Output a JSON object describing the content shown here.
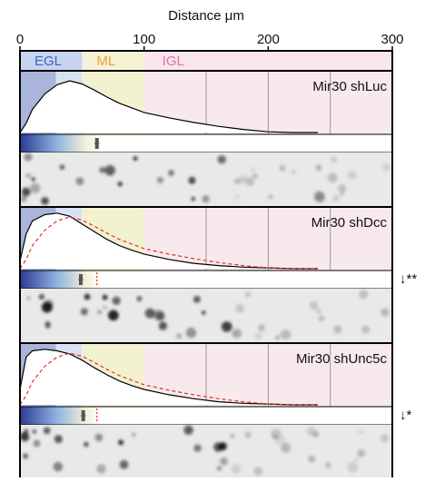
{
  "chart_data": {
    "type": "density",
    "xlabel": "Distance μm",
    "xlim": [
      0,
      300
    ],
    "xticks": [
      0,
      100,
      200,
      300
    ],
    "layers": [
      {
        "name": "EGL",
        "start": 0,
        "end": 50,
        "color": "#3a67c0",
        "bg": "#c8d4ee"
      },
      {
        "name": "ML",
        "start": 50,
        "end": 100,
        "color": "#f0a030",
        "bg": "#f6f2d6"
      },
      {
        "name": "IGL",
        "start": 100,
        "end": 300,
        "color": "#e070a8",
        "bg": "#f9e6ee"
      }
    ],
    "zones": [
      {
        "start": 0,
        "end": 29,
        "color": "#a9b5da"
      },
      {
        "start": 29,
        "end": 50,
        "color": "#d7e3f2"
      },
      {
        "start": 50,
        "end": 100,
        "color": "#f2f1d0"
      },
      {
        "start": 100,
        "end": 300,
        "color": "#f8e9ed"
      }
    ],
    "dividers": [
      150,
      200,
      250
    ],
    "ylim": [
      0,
      1
    ],
    "x": [
      0,
      5,
      10,
      20,
      30,
      40,
      50,
      60,
      70,
      80,
      90,
      100,
      120,
      140,
      160,
      180,
      200,
      220,
      240
    ],
    "reference_color": "#e0302a",
    "series": [
      {
        "name": "Mir30 shLuc",
        "color": "#000000",
        "values": [
          0,
          0.12,
          0.3,
          0.5,
          0.62,
          0.67,
          0.63,
          0.55,
          0.46,
          0.38,
          0.32,
          0.26,
          0.19,
          0.13,
          0.08,
          0.04,
          0.01,
          0,
          0
        ],
        "mean": 62,
        "error": 2
      },
      {
        "name": "Mir30 shDcc",
        "color": "#000000",
        "values": [
          0.1,
          0.45,
          0.62,
          0.7,
          0.72,
          0.68,
          0.58,
          0.48,
          0.38,
          0.3,
          0.24,
          0.19,
          0.12,
          0.07,
          0.04,
          0.02,
          0.01,
          0,
          0
        ],
        "mean": 49,
        "error": 2,
        "annotation": "↓**"
      },
      {
        "name": "Mir30 shUnc5c",
        "color": "#000000",
        "values": [
          0.2,
          0.62,
          0.7,
          0.72,
          0.7,
          0.66,
          0.58,
          0.48,
          0.39,
          0.31,
          0.25,
          0.2,
          0.13,
          0.08,
          0.04,
          0.02,
          0.01,
          0,
          0
        ],
        "mean": 51,
        "error": 2,
        "annotation": "↓*"
      }
    ]
  }
}
